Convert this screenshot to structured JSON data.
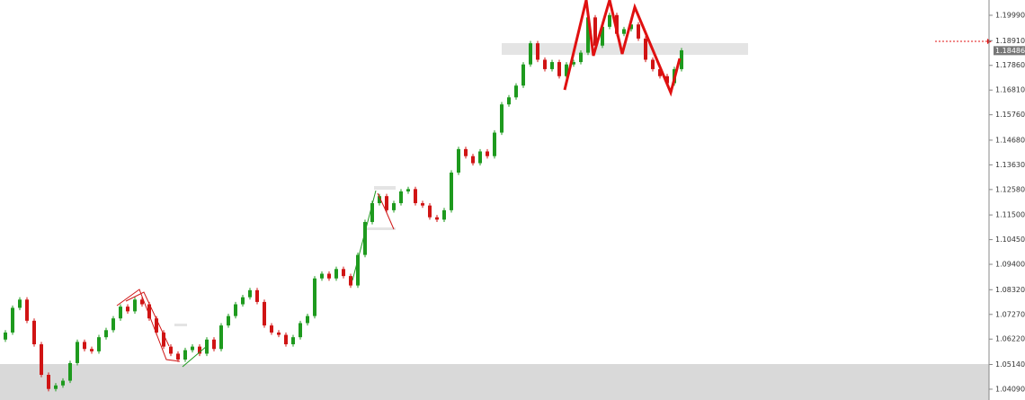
{
  "chart_data": {
    "type": "candlestick",
    "ylim": [
      1.0363,
      1.2064
    ],
    "yticks": [
      {
        "value": 1.1999,
        "label": "1.19990"
      },
      {
        "value": 1.1891,
        "label": "1.18910"
      },
      {
        "value": 1.1786,
        "label": "1.17860"
      },
      {
        "value": 1.1681,
        "label": "1.16810"
      },
      {
        "value": 1.1576,
        "label": "1.15760"
      },
      {
        "value": 1.1468,
        "label": "1.14680"
      },
      {
        "value": 1.1363,
        "label": "1.13630"
      },
      {
        "value": 1.1258,
        "label": "1.12580"
      },
      {
        "value": 1.115,
        "label": "1.11500"
      },
      {
        "value": 1.1045,
        "label": "1.10450"
      },
      {
        "value": 1.094,
        "label": "1.09400"
      },
      {
        "value": 1.0832,
        "label": "1.08320"
      },
      {
        "value": 1.0727,
        "label": "1.07270"
      },
      {
        "value": 1.0622,
        "label": "1.06220"
      },
      {
        "value": 1.0514,
        "label": "1.05140"
      },
      {
        "value": 1.0409,
        "label": "1.04090"
      }
    ],
    "current_price": 1.18486,
    "up_color": "#1e9a1e",
    "down_color": "#d01414",
    "open": [
      1.062,
      1.065,
      1.0755,
      1.079,
      1.07,
      1.06,
      1.047,
      1.041,
      1.0425,
      1.0445,
      1.052,
      1.061,
      1.058,
      1.057,
      1.063,
      1.066,
      1.071,
      1.076,
      1.074,
      1.079,
      1.077,
      1.071,
      1.065,
      1.059,
      1.056,
      1.0535,
      1.0575,
      1.059,
      1.056,
      1.062,
      1.058,
      1.068,
      1.072,
      1.077,
      1.08,
      1.083,
      1.078,
      1.068,
      1.065,
      1.064,
      1.06,
      1.063,
      1.069,
      1.072,
      1.088,
      1.09,
      1.088,
      1.092,
      1.089,
      1.085,
      1.098,
      1.112,
      1.12,
      1.123,
      1.117,
      1.12,
      1.125,
      1.126,
      1.12,
      1.119,
      1.114,
      1.113,
      1.117,
      1.133,
      1.143,
      1.14,
      1.137,
      1.142,
      1.14,
      1.15,
      1.162,
      1.165,
      1.17,
      1.179,
      1.188,
      1.181,
      1.177,
      1.18,
      1.174,
      1.179,
      1.18,
      1.184,
      1.199,
      1.187,
      1.195,
      1.2,
      1.192,
      1.194,
      1.196,
      1.19,
      1.181,
      1.177,
      1.174,
      1.171,
      1.177
    ],
    "high": [
      1.066,
      1.0765,
      1.08,
      1.08,
      1.071,
      1.061,
      1.048,
      1.0435,
      1.0455,
      1.053,
      1.062,
      1.062,
      1.059,
      1.064,
      1.067,
      1.072,
      1.077,
      1.077,
      1.08,
      1.08,
      1.078,
      1.072,
      1.066,
      1.06,
      1.057,
      1.0585,
      1.06,
      1.06,
      1.063,
      1.063,
      1.069,
      1.073,
      1.078,
      1.081,
      1.084,
      1.084,
      1.079,
      1.069,
      1.066,
      1.065,
      1.064,
      1.07,
      1.073,
      1.089,
      1.091,
      1.091,
      1.093,
      1.093,
      1.09,
      1.099,
      1.113,
      1.121,
      1.124,
      1.124,
      1.121,
      1.126,
      1.127,
      1.127,
      1.121,
      1.12,
      1.115,
      1.118,
      1.134,
      1.144,
      1.144,
      1.141,
      1.143,
      1.143,
      1.151,
      1.163,
      1.166,
      1.171,
      1.18,
      1.189,
      1.189,
      1.182,
      1.181,
      1.181,
      1.18,
      1.181,
      1.185,
      1.2,
      1.2,
      1.196,
      1.201,
      1.201,
      1.195,
      1.197,
      1.197,
      1.191,
      1.182,
      1.178,
      1.175,
      1.178,
      1.186
    ],
    "low": [
      1.061,
      1.064,
      1.0745,
      1.069,
      1.059,
      1.046,
      1.04,
      1.04,
      1.0415,
      1.0435,
      1.051,
      1.057,
      1.056,
      1.056,
      1.062,
      1.065,
      1.07,
      1.073,
      1.073,
      1.076,
      1.07,
      1.064,
      1.058,
      1.055,
      1.0525,
      1.0525,
      1.0565,
      1.055,
      1.055,
      1.057,
      1.057,
      1.067,
      1.071,
      1.076,
      1.079,
      1.077,
      1.067,
      1.064,
      1.063,
      1.059,
      1.059,
      1.062,
      1.068,
      1.071,
      1.087,
      1.087,
      1.087,
      1.088,
      1.084,
      1.084,
      1.097,
      1.111,
      1.119,
      1.116,
      1.116,
      1.119,
      1.124,
      1.119,
      1.118,
      1.113,
      1.112,
      1.112,
      1.116,
      1.132,
      1.139,
      1.136,
      1.136,
      1.139,
      1.139,
      1.149,
      1.161,
      1.164,
      1.169,
      1.178,
      1.18,
      1.176,
      1.176,
      1.173,
      1.173,
      1.178,
      1.179,
      1.183,
      1.186,
      1.186,
      1.194,
      1.191,
      1.191,
      1.193,
      1.189,
      1.18,
      1.176,
      1.173,
      1.17,
      1.17,
      1.176
    ],
    "close": [
      1.065,
      1.0755,
      1.079,
      1.07,
      1.06,
      1.047,
      1.041,
      1.0425,
      1.0445,
      1.052,
      1.061,
      1.058,
      1.057,
      1.063,
      1.066,
      1.071,
      1.076,
      1.074,
      1.079,
      1.077,
      1.071,
      1.065,
      1.059,
      1.056,
      1.0535,
      1.0575,
      1.059,
      1.056,
      1.062,
      1.058,
      1.068,
      1.072,
      1.077,
      1.08,
      1.083,
      1.078,
      1.068,
      1.065,
      1.064,
      1.06,
      1.063,
      1.069,
      1.072,
      1.088,
      1.09,
      1.088,
      1.092,
      1.089,
      1.085,
      1.098,
      1.112,
      1.12,
      1.123,
      1.117,
      1.12,
      1.125,
      1.126,
      1.12,
      1.119,
      1.114,
      1.113,
      1.117,
      1.133,
      1.143,
      1.14,
      1.137,
      1.142,
      1.14,
      1.15,
      1.162,
      1.165,
      1.17,
      1.179,
      1.188,
      1.181,
      1.177,
      1.18,
      1.174,
      1.179,
      1.18,
      1.184,
      1.199,
      1.187,
      1.195,
      1.2,
      1.192,
      1.194,
      1.196,
      1.19,
      1.181,
      1.177,
      1.174,
      1.171,
      1.177,
      1.185
    ]
  }
}
